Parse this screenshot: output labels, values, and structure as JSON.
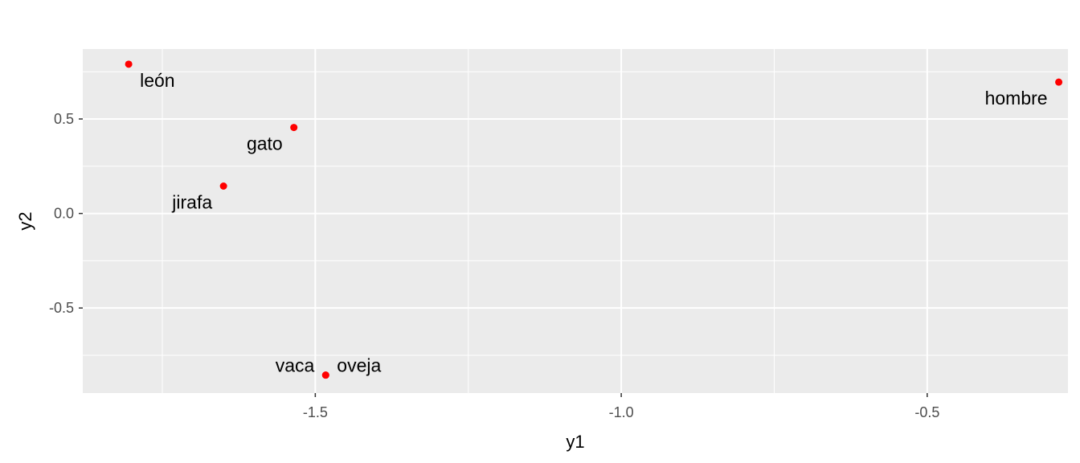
{
  "chart_data": {
    "type": "scatter",
    "xlabel": "y1",
    "ylabel": "y2",
    "xlim": [
      -1.88,
      -0.27
    ],
    "ylim": [
      -0.95,
      0.87
    ],
    "x_ticks": [
      -1.5,
      -1.0,
      -0.5
    ],
    "x_tick_labels": [
      "-1.5",
      "-1.0",
      "-0.5"
    ],
    "y_ticks": [
      -0.5,
      0.0,
      0.5
    ],
    "y_tick_labels": [
      "-0.5",
      "0.0",
      "0.5"
    ],
    "grid": true,
    "point_color": "#ff0000",
    "panel_color": "#ebebeb",
    "points": [
      {
        "label": "león",
        "x": -1.805,
        "y": 0.79,
        "label_side": "right",
        "label_below": true
      },
      {
        "label": "gato",
        "x": -1.535,
        "y": 0.455,
        "label_side": "left",
        "label_below": true
      },
      {
        "label": "jirafa",
        "x": -1.65,
        "y": 0.145,
        "label_side": "left",
        "label_below": true
      },
      {
        "label": "vaca",
        "x": -1.483,
        "y": -0.855,
        "label_side": "left",
        "label_below": false
      },
      {
        "label": "oveja",
        "x": -1.483,
        "y": -0.855,
        "label_side": "right",
        "label_below": false
      },
      {
        "label": "hombre",
        "x": -0.285,
        "y": 0.695,
        "label_side": "left",
        "label_below": true
      }
    ]
  }
}
